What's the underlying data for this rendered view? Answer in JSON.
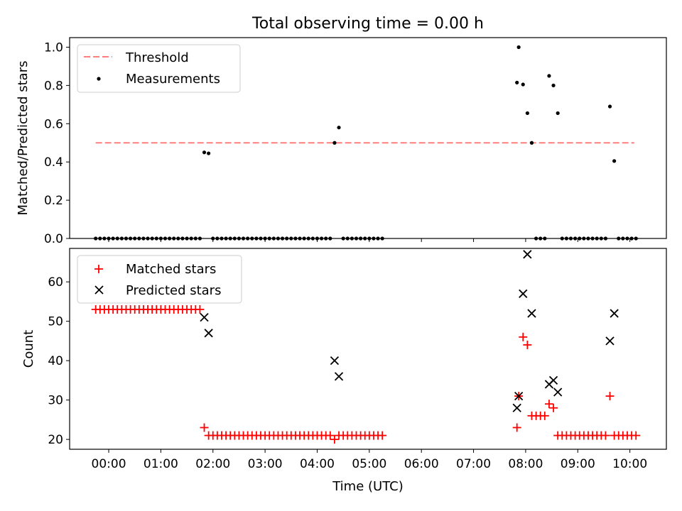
{
  "chart_data": {
    "title": "Total observing time = 0.00 h",
    "xlabel": "Time (UTC)",
    "x_ticks": [
      "00:00",
      "01:00",
      "02:00",
      "03:00",
      "04:00",
      "05:00",
      "06:00",
      "07:00",
      "08:00",
      "09:00",
      "10:00"
    ],
    "xlim": [
      "-00:45",
      "10:42"
    ],
    "panels": [
      {
        "type": "scatter",
        "ylabel": "Matched/Predicted stars",
        "ylim": [
          0,
          1.05
        ],
        "y_ticks": [
          "0.0",
          "0.2",
          "0.4",
          "0.6",
          "0.8",
          "1.0"
        ],
        "legend_position": "upper-left",
        "threshold": {
          "name": "Threshold",
          "value": 0.5,
          "x_range": [
            "-00:15",
            "10:05"
          ],
          "color": "#ff7f7f"
        },
        "series": [
          {
            "name": "Measurements",
            "color": "#000000",
            "points": [
              [
                "-00:15",
                0
              ],
              [
                "-00:10",
                0
              ],
              [
                "-00:05",
                0
              ],
              [
                "00:00",
                0
              ],
              [
                "00:05",
                0
              ],
              [
                "00:10",
                0
              ],
              [
                "00:15",
                0
              ],
              [
                "00:20",
                0
              ],
              [
                "00:25",
                0
              ],
              [
                "00:30",
                0
              ],
              [
                "00:35",
                0
              ],
              [
                "00:40",
                0
              ],
              [
                "00:45",
                0
              ],
              [
                "00:50",
                0
              ],
              [
                "00:55",
                0
              ],
              [
                "01:00",
                0
              ],
              [
                "01:05",
                0
              ],
              [
                "01:10",
                0
              ],
              [
                "01:15",
                0
              ],
              [
                "01:20",
                0
              ],
              [
                "01:25",
                0
              ],
              [
                "01:30",
                0
              ],
              [
                "01:35",
                0
              ],
              [
                "01:40",
                0
              ],
              [
                "01:45",
                0
              ],
              [
                "01:50",
                0.45
              ],
              [
                "01:55",
                0.445
              ],
              [
                "02:00",
                0
              ],
              [
                "02:05",
                0
              ],
              [
                "02:10",
                0
              ],
              [
                "02:15",
                0
              ],
              [
                "02:20",
                0
              ],
              [
                "02:25",
                0
              ],
              [
                "02:30",
                0
              ],
              [
                "02:35",
                0
              ],
              [
                "02:40",
                0
              ],
              [
                "02:45",
                0
              ],
              [
                "02:50",
                0
              ],
              [
                "02:55",
                0
              ],
              [
                "03:00",
                0
              ],
              [
                "03:05",
                0
              ],
              [
                "03:10",
                0
              ],
              [
                "03:15",
                0
              ],
              [
                "03:20",
                0
              ],
              [
                "03:25",
                0
              ],
              [
                "03:30",
                0
              ],
              [
                "03:35",
                0
              ],
              [
                "03:40",
                0
              ],
              [
                "03:45",
                0
              ],
              [
                "03:50",
                0
              ],
              [
                "03:55",
                0
              ],
              [
                "04:00",
                0
              ],
              [
                "04:05",
                0
              ],
              [
                "04:10",
                0
              ],
              [
                "04:15",
                0
              ],
              [
                "04:20",
                0.5
              ],
              [
                "04:25",
                0.58
              ],
              [
                "04:30",
                0
              ],
              [
                "04:35",
                0
              ],
              [
                "04:40",
                0
              ],
              [
                "04:45",
                0
              ],
              [
                "04:50",
                0
              ],
              [
                "04:55",
                0
              ],
              [
                "05:00",
                0
              ],
              [
                "05:05",
                0
              ],
              [
                "05:10",
                0
              ],
              [
                "05:15",
                0
              ],
              [
                "07:50",
                0.815
              ],
              [
                "07:52",
                1.0
              ],
              [
                "07:57",
                0.805
              ],
              [
                "08:02",
                0.655
              ],
              [
                "08:07",
                0.5
              ],
              [
                "08:12",
                0
              ],
              [
                "08:17",
                0
              ],
              [
                "08:22",
                0
              ],
              [
                "08:27",
                0.85
              ],
              [
                "08:32",
                0.8
              ],
              [
                "08:37",
                0.655
              ],
              [
                "08:42",
                0
              ],
              [
                "08:47",
                0
              ],
              [
                "08:52",
                0
              ],
              [
                "08:57",
                0
              ],
              [
                "09:02",
                0
              ],
              [
                "09:07",
                0
              ],
              [
                "09:12",
                0
              ],
              [
                "09:17",
                0
              ],
              [
                "09:22",
                0
              ],
              [
                "09:27",
                0
              ],
              [
                "09:32",
                0
              ],
              [
                "09:37",
                0.69
              ],
              [
                "09:42",
                0.405
              ],
              [
                "09:47",
                0
              ],
              [
                "09:52",
                0
              ],
              [
                "09:57",
                0
              ],
              [
                "10:02",
                0
              ],
              [
                "10:07",
                0
              ]
            ]
          }
        ]
      },
      {
        "type": "scatter",
        "ylabel": "Count",
        "ylim": [
          17.5,
          68.5
        ],
        "y_ticks": [
          "20",
          "30",
          "40",
          "50",
          "60"
        ],
        "legend_position": "upper-left",
        "series": [
          {
            "name": "Matched stars",
            "marker": "plus",
            "color": "#ff0000",
            "points": [
              [
                "-00:15",
                53
              ],
              [
                "-00:10",
                53
              ],
              [
                "-00:05",
                53
              ],
              [
                "00:00",
                53
              ],
              [
                "00:05",
                53
              ],
              [
                "00:10",
                53
              ],
              [
                "00:15",
                53
              ],
              [
                "00:20",
                53
              ],
              [
                "00:25",
                53
              ],
              [
                "00:30",
                53
              ],
              [
                "00:35",
                53
              ],
              [
                "00:40",
                53
              ],
              [
                "00:45",
                53
              ],
              [
                "00:50",
                53
              ],
              [
                "00:55",
                53
              ],
              [
                "01:00",
                53
              ],
              [
                "01:05",
                53
              ],
              [
                "01:10",
                53
              ],
              [
                "01:15",
                53
              ],
              [
                "01:20",
                53
              ],
              [
                "01:25",
                53
              ],
              [
                "01:30",
                53
              ],
              [
                "01:35",
                53
              ],
              [
                "01:40",
                53
              ],
              [
                "01:45",
                53
              ],
              [
                "01:50",
                23
              ],
              [
                "01:55",
                21
              ],
              [
                "02:00",
                21
              ],
              [
                "02:05",
                21
              ],
              [
                "02:10",
                21
              ],
              [
                "02:15",
                21
              ],
              [
                "02:20",
                21
              ],
              [
                "02:25",
                21
              ],
              [
                "02:30",
                21
              ],
              [
                "02:35",
                21
              ],
              [
                "02:40",
                21
              ],
              [
                "02:45",
                21
              ],
              [
                "02:50",
                21
              ],
              [
                "02:55",
                21
              ],
              [
                "03:00",
                21
              ],
              [
                "03:05",
                21
              ],
              [
                "03:10",
                21
              ],
              [
                "03:15",
                21
              ],
              [
                "03:20",
                21
              ],
              [
                "03:25",
                21
              ],
              [
                "03:30",
                21
              ],
              [
                "03:35",
                21
              ],
              [
                "03:40",
                21
              ],
              [
                "03:45",
                21
              ],
              [
                "03:50",
                21
              ],
              [
                "03:55",
                21
              ],
              [
                "04:00",
                21
              ],
              [
                "04:05",
                21
              ],
              [
                "04:10",
                21
              ],
              [
                "04:15",
                21
              ],
              [
                "04:20",
                20
              ],
              [
                "04:25",
                21
              ],
              [
                "04:30",
                21
              ],
              [
                "04:35",
                21
              ],
              [
                "04:40",
                21
              ],
              [
                "04:45",
                21
              ],
              [
                "04:50",
                21
              ],
              [
                "04:55",
                21
              ],
              [
                "05:00",
                21
              ],
              [
                "05:05",
                21
              ],
              [
                "05:10",
                21
              ],
              [
                "05:15",
                21
              ],
              [
                "07:50",
                23
              ],
              [
                "07:52",
                31
              ],
              [
                "07:57",
                46
              ],
              [
                "08:02",
                44
              ],
              [
                "08:07",
                26
              ],
              [
                "08:12",
                26
              ],
              [
                "08:17",
                26
              ],
              [
                "08:22",
                26
              ],
              [
                "08:27",
                29
              ],
              [
                "08:32",
                28
              ],
              [
                "08:37",
                21
              ],
              [
                "08:42",
                21
              ],
              [
                "08:47",
                21
              ],
              [
                "08:52",
                21
              ],
              [
                "08:57",
                21
              ],
              [
                "09:02",
                21
              ],
              [
                "09:07",
                21
              ],
              [
                "09:12",
                21
              ],
              [
                "09:17",
                21
              ],
              [
                "09:22",
                21
              ],
              [
                "09:27",
                21
              ],
              [
                "09:32",
                21
              ],
              [
                "09:37",
                31
              ],
              [
                "09:42",
                21
              ],
              [
                "09:47",
                21
              ],
              [
                "09:52",
                21
              ],
              [
                "09:57",
                21
              ],
              [
                "10:02",
                21
              ],
              [
                "10:07",
                21
              ]
            ]
          },
          {
            "name": "Predicted stars",
            "marker": "x",
            "color": "#000000",
            "points": [
              [
                "01:50",
                51
              ],
              [
                "01:55",
                47
              ],
              [
                "04:20",
                40
              ],
              [
                "04:25",
                36
              ],
              [
                "07:50",
                28
              ],
              [
                "07:52",
                31
              ],
              [
                "07:57",
                57
              ],
              [
                "08:02",
                67
              ],
              [
                "08:07",
                52
              ],
              [
                "08:27",
                34
              ],
              [
                "08:32",
                35
              ],
              [
                "08:37",
                32
              ],
              [
                "09:37",
                45
              ],
              [
                "09:42",
                52
              ]
            ]
          }
        ]
      }
    ]
  }
}
